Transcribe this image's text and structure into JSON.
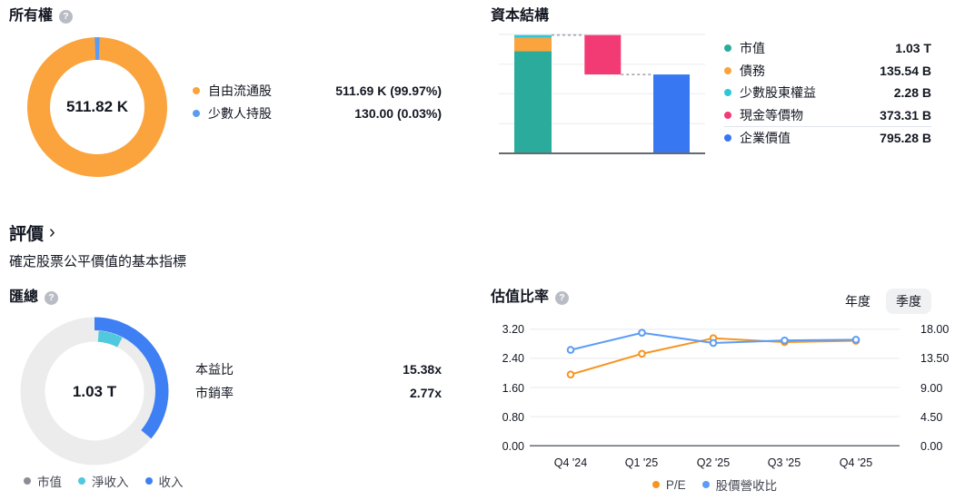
{
  "colors": {
    "orange": "#FBA33C",
    "blue_light": "#5B9CF0",
    "teal": "#2BAB9B",
    "cyan": "#2FC6DA",
    "pink": "#F23A74",
    "blue": "#3877F2",
    "gray_ring": "#ECECEC",
    "gray_dot": "#8B8E96",
    "summary_cyan": "#50C8DE",
    "summary_blue": "#3E80F4",
    "line_orange": "#F7941F",
    "line_blue": "#5B9CF6"
  },
  "ownership": {
    "title": "所有權",
    "center_value": "511.82 K",
    "legend": [
      {
        "label": "自由流通股",
        "value": "511.69 K (99.97%)"
      },
      {
        "label": "少數人持股",
        "value": "130.00 (0.03%)"
      }
    ]
  },
  "capital_structure": {
    "title": "資本結構",
    "rows": [
      {
        "label": "市值",
        "value": "1.03 T"
      },
      {
        "label": "債務",
        "value": "135.54 B"
      },
      {
        "label": "少數股東權益",
        "value": "2.28 B"
      },
      {
        "label": "現金等價物",
        "value": "373.31 B"
      },
      {
        "label": "企業價值",
        "value": "795.28 B"
      }
    ]
  },
  "valuation_section": {
    "title": "評價",
    "chevron": "›",
    "subtitle": "確定股票公平價值的基本指標"
  },
  "summary": {
    "title": "匯總",
    "center_value": "1.03 T",
    "stats": [
      {
        "label": "本益比",
        "value": "15.38x"
      },
      {
        "label": "市銷率",
        "value": "2.77x"
      }
    ],
    "legend": [
      {
        "label": "市值"
      },
      {
        "label": "淨收入"
      },
      {
        "label": "收入"
      }
    ]
  },
  "ratios": {
    "title": "估值比率",
    "toggle": {
      "annual": "年度",
      "quarterly": "季度",
      "selected": "季度"
    },
    "legend": [
      {
        "label": "P/E"
      },
      {
        "label": "股價營收比"
      }
    ],
    "left_ticks": [
      "3.20",
      "2.40",
      "1.60",
      "0.80",
      "0.00"
    ],
    "right_ticks": [
      "18.00",
      "13.50",
      "9.00",
      "4.50",
      "0.00"
    ],
    "x_labels": [
      "Q4 '24",
      "Q1 '25",
      "Q2 '25",
      "Q3 '25",
      "Q4 '25"
    ]
  },
  "chart_data": [
    {
      "id": "ownership-donut",
      "type": "pie",
      "title": "所有權",
      "center_label": "511.82 K",
      "segments": [
        {
          "label": "自由流通股",
          "value": 511690,
          "pct": 99.97,
          "color": "#FBA33C"
        },
        {
          "label": "少數人持股",
          "value": 130,
          "pct": 0.03,
          "color": "#5B9CF0"
        }
      ]
    },
    {
      "id": "capital-structure",
      "type": "waterfall",
      "title": "資本結構",
      "items": [
        {
          "label": "市值",
          "value_b": 1030,
          "color": "#2BAB9B"
        },
        {
          "label": "債務",
          "value_b": 135.54,
          "color": "#FBA33C"
        },
        {
          "label": "少數股東權益",
          "value_b": 2.28,
          "color": "#2FC6DA"
        },
        {
          "label": "現金等價物",
          "value_b": -373.31,
          "color": "#F23A74"
        },
        {
          "label": "企業價值",
          "value_b": 795.28,
          "color": "#3877F2"
        }
      ],
      "gridline_step_b": 300
    },
    {
      "id": "summary-donut",
      "type": "pie",
      "title": "匯總",
      "center_label": "1.03 T",
      "segments": [
        {
          "label": "市值",
          "value_t": 1.03,
          "ratio_of_mcap": 1.0,
          "color": "#ECECEC"
        },
        {
          "label": "淨收入",
          "ratio_of_mcap": 0.065,
          "color": "#50C8DE"
        },
        {
          "label": "收入",
          "ratio_of_mcap": 0.361,
          "color": "#3E80F4"
        }
      ]
    },
    {
      "id": "valuation-ratios",
      "type": "line",
      "title": "估值比率",
      "x": [
        "Q4 '24",
        "Q1 '25",
        "Q2 '25",
        "Q3 '25",
        "Q4 '25"
      ],
      "series": [
        {
          "name": "P/E",
          "axis": "right",
          "color": "#F7941F",
          "values": [
            11.0,
            14.2,
            16.6,
            16.0,
            16.2
          ]
        },
        {
          "name": "股價營收比",
          "axis": "left",
          "color": "#5B9CF6",
          "values": [
            2.63,
            3.1,
            2.82,
            2.89,
            2.91
          ]
        }
      ],
      "left_axis": {
        "min": 0,
        "max": 3.2,
        "ticks": [
          0.0,
          0.8,
          1.6,
          2.4,
          3.2
        ]
      },
      "right_axis": {
        "min": 0,
        "max": 18,
        "ticks": [
          0.0,
          4.5,
          9.0,
          13.5,
          18.0
        ]
      },
      "grid": true,
      "legend_position": "bottom"
    }
  ]
}
